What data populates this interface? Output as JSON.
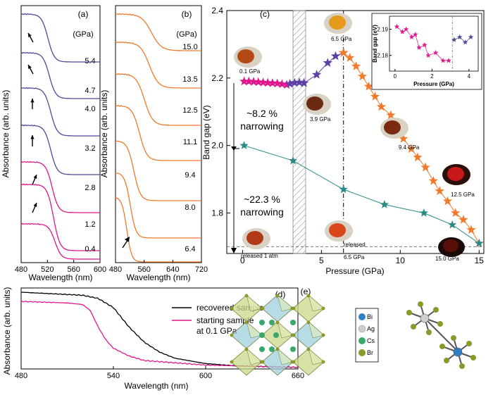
{
  "panel_a": {
    "label": "(a)",
    "unit_label": "(GPa)",
    "pressures": [
      "5.4",
      "4.7",
      "4.0",
      "3.2",
      "2.8",
      "1.2",
      "0.4"
    ],
    "xlabel": "Wavelength (nm)",
    "ylabel": "Absorbance (arb. units)",
    "xticks": [
      "480",
      "520",
      "560",
      "600"
    ]
  },
  "panel_b": {
    "label": "(b)",
    "unit_label": "(GPa)",
    "pressures": [
      "15.0",
      "13.5",
      "12.5",
      "11.1",
      "9.4",
      "8.0",
      "6.4"
    ],
    "xlabel": "Wavelength (nm)",
    "ylabel": "Absorbance (arb. units)",
    "xticks": [
      "480",
      "560",
      "640",
      "720"
    ]
  },
  "panel_c": {
    "label": "(c)",
    "xlabel": "Pressure (GPa)",
    "ylabel": "Band gap (eV)",
    "xticks": [
      "0",
      "5",
      "10",
      "15"
    ],
    "yticks": [
      "1.8",
      "2.0",
      "2.2",
      "2.4"
    ],
    "note1_pct": "~8.2 %",
    "note1_word": "narrowing",
    "note2_pct": "~22.3 %",
    "note2_word": "narrowing",
    "photo_labels": {
      "p01": "0.1 GPa",
      "p39": "3.9 GPa",
      "p65": "6.5 GPa",
      "p94": "9.4 GPa",
      "p125": "12.5 GPa",
      "p150": "15.0 GPa",
      "rel1": "released 1 atm",
      "rel2a": "released",
      "rel2b": "6.5 GPa"
    },
    "inset": {
      "xlabel": "Pressure (GPa)",
      "ylabel": "Band gap (eV)",
      "xticks": [
        "0",
        "2",
        "4"
      ],
      "yticks": [
        "2.18",
        "2.19"
      ]
    }
  },
  "panel_d": {
    "label": "(d)",
    "xlabel": "Wavelength (nm)",
    "ylabel": "Absorbance (arb. units)",
    "xticks": [
      "480",
      "540",
      "600",
      "660"
    ],
    "legend": [
      "recovered sample",
      "starting sample",
      "at 0.1 GPa"
    ]
  },
  "panel_e": {
    "label": "(e)",
    "legend": [
      "Bi",
      "Ag",
      "Cs",
      "Br"
    ],
    "colors": {
      "Bi": "#2f7fc6",
      "Ag": "#cfcfcf",
      "Cs": "#3aa76d",
      "Br": "#8a9a2a"
    }
  },
  "colors": {
    "magenta": "#e0168c",
    "purple": "#5b3fa6",
    "orange": "#f07a2a",
    "teal": "#2a8a86",
    "indigo": "#4b4a9b",
    "gray": "#777777"
  },
  "chart_data": [
    {
      "type": "line",
      "title": "",
      "xlabel": "Pressure (GPa)",
      "ylabel": "Band gap (eV)",
      "xlim": [
        -1,
        15.3
      ],
      "ylim": [
        1.68,
        2.4
      ],
      "series": [
        {
          "values_xy": [
            [
              0.1,
              2.19
            ],
            [
              0.4,
              2.19
            ],
            [
              0.7,
              2.189
            ],
            [
              1.0,
              2.188
            ],
            [
              1.3,
              2.187
            ],
            [
              1.6,
              2.186
            ],
            [
              1.9,
              2.185
            ],
            [
              2.2,
              2.184
            ],
            [
              2.5,
              2.182
            ],
            [
              2.8,
              2.18
            ]
          ],
          "color": "#e0168c"
        },
        {
          "values_xy": [
            [
              3.0,
              2.183
            ],
            [
              3.3,
              2.186
            ],
            [
              3.6,
              2.187
            ],
            [
              3.9,
              2.185
            ],
            [
              4.7,
              2.21
            ],
            [
              5.4,
              2.245
            ],
            [
              5.9,
              2.265
            ],
            [
              6.4,
              2.275
            ]
          ],
          "color": "#5b3fa6"
        },
        {
          "values_xy": [
            [
              6.4,
              2.275
            ],
            [
              6.8,
              2.26
            ],
            [
              7.2,
              2.235
            ],
            [
              7.6,
              2.205
            ],
            [
              8.0,
              2.175
            ],
            [
              8.4,
              2.145
            ],
            [
              8.8,
              2.115
            ],
            [
              9.4,
              2.09
            ],
            [
              9.8,
              2.05
            ],
            [
              10.2,
              2.02
            ],
            [
              10.7,
              1.99
            ],
            [
              11.1,
              1.965
            ],
            [
              11.6,
              1.935
            ],
            [
              12.1,
              1.895
            ],
            [
              12.5,
              1.865
            ],
            [
              13.0,
              1.835
            ],
            [
              13.5,
              1.8
            ],
            [
              14.0,
              1.78
            ],
            [
              14.5,
              1.75
            ],
            [
              15.0,
              1.71
            ]
          ],
          "color": "#f07a2a"
        },
        {
          "values_xy": [
            [
              0.1,
              2.0
            ],
            [
              3.2,
              1.955
            ],
            [
              6.4,
              1.87
            ],
            [
              9.0,
              1.825
            ],
            [
              11.5,
              1.8
            ],
            [
              13.3,
              1.765
            ],
            [
              15.0,
              1.71
            ]
          ],
          "color": "#2a8a86"
        }
      ]
    },
    {
      "type": "scatter",
      "title": "",
      "xlabel": "Pressure (GPa)",
      "ylabel": "Band gap (eV)",
      "xlim": [
        -0.3,
        4.5
      ],
      "ylim": [
        2.174,
        2.195
      ],
      "series": [
        {
          "values_xy": [
            [
              0.1,
              2.191
            ],
            [
              0.4,
              2.189
            ],
            [
              0.6,
              2.19
            ],
            [
              0.9,
              2.187
            ],
            [
              1.1,
              2.188
            ],
            [
              1.3,
              2.183
            ],
            [
              1.6,
              2.184
            ],
            [
              1.8,
              2.18
            ],
            [
              2.2,
              2.181
            ],
            [
              2.6,
              2.178
            ],
            [
              2.9,
              2.178
            ]
          ],
          "color": "#e0168c"
        },
        {
          "values_xy": [
            [
              3.2,
              2.186
            ],
            [
              3.5,
              2.187
            ],
            [
              3.8,
              2.185
            ],
            [
              4.1,
              2.187
            ]
          ],
          "color": "#4b4a9b"
        }
      ]
    },
    {
      "type": "line",
      "title": "",
      "xlabel": "Wavelength (nm)",
      "ylabel": "Absorbance (arb. units)",
      "xlim": [
        480,
        660
      ],
      "series": [
        {
          "values_xy": [
            [
              480,
              1.0
            ],
            [
              520,
              0.96
            ],
            [
              530,
              0.92
            ],
            [
              540,
              0.8
            ],
            [
              550,
              0.55
            ],
            [
              560,
              0.35
            ],
            [
              570,
              0.22
            ],
            [
              580,
              0.14
            ],
            [
              600,
              0.07
            ],
            [
              620,
              0.04
            ],
            [
              660,
              0.02
            ]
          ],
          "color": "#000000"
        },
        {
          "values_xy": [
            [
              480,
              0.88
            ],
            [
              510,
              0.86
            ],
            [
              520,
              0.84
            ],
            [
              525,
              0.76
            ],
            [
              530,
              0.55
            ],
            [
              535,
              0.38
            ],
            [
              540,
              0.27
            ],
            [
              550,
              0.17
            ],
            [
              560,
              0.11
            ],
            [
              600,
              0.05
            ],
            [
              660,
              0.02
            ]
          ],
          "color": "#e0168c"
        }
      ]
    }
  ]
}
